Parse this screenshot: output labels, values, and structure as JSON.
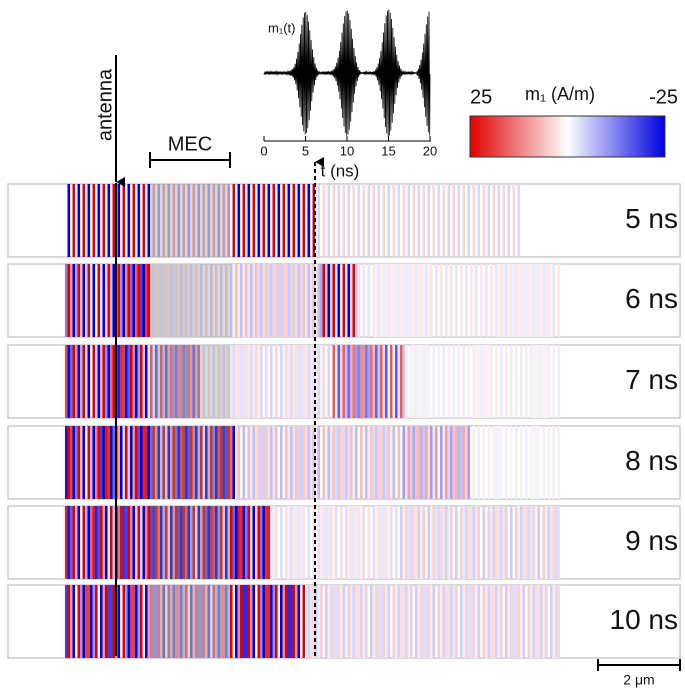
{
  "figure": {
    "antenna_label": "antenna",
    "mec_label": "MEC",
    "inset": {
      "ylabel": "m₁(t)",
      "xlabel": "t (ns)",
      "xlim": [
        0,
        20
      ],
      "xticks": [
        0,
        5,
        10,
        15,
        20
      ]
    },
    "colorbar": {
      "title": "m₁ (A/m)",
      "max": 25,
      "min": -25
    },
    "rows": [
      "5 ns",
      "6 ns",
      "7 ns",
      "8 ns",
      "9 ns",
      "10 ns"
    ],
    "scale_bar": "2 μm"
  }
}
